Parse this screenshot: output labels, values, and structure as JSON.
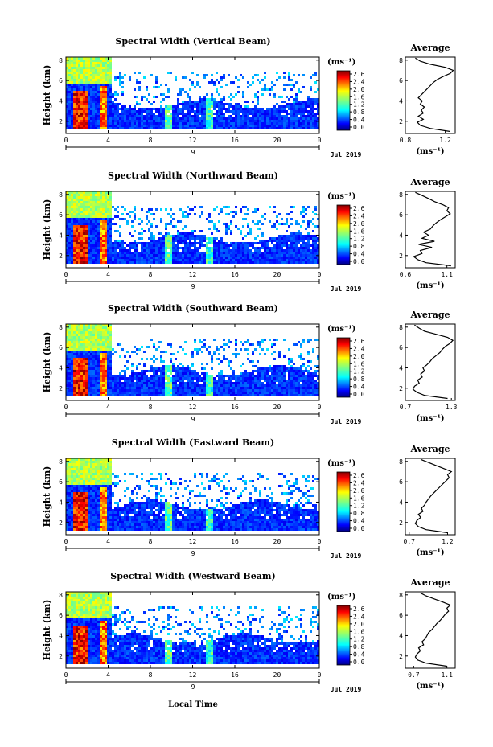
{
  "figure": {
    "xlabel": "Local Time",
    "date_label": "Jul 2019",
    "day_label": "9",
    "colorbar_unit": "(ms⁻¹)"
  },
  "chart_data": [
    {
      "type": "heatmap",
      "title": "Spectral Width (Vertical Beam)",
      "ylabel": "Height (km)",
      "xlabel": "Local Time",
      "x_ticks": [
        "0",
        "4",
        "8",
        "12",
        "16",
        "20",
        "0"
      ],
      "xlim": [
        0,
        24
      ],
      "y_ticks": [
        "2",
        "4",
        "6",
        "8"
      ],
      "ylim": [
        0.8,
        8.3
      ],
      "colorbar_ticks": [
        "2.6",
        "2.4",
        "2.0",
        "1.6",
        "1.2",
        "0.8",
        "0.4",
        "0.0"
      ],
      "clim": [
        0.0,
        2.8
      ],
      "average_profile": {
        "title": "Average",
        "xlabel": "(ms⁻¹)",
        "x_ticks": [
          "0.8",
          "1.2"
        ],
        "xlim": [
          0.8,
          1.3
        ],
        "y_ticks": [
          "2",
          "4",
          "6",
          "8"
        ],
        "ylim": [
          0.8,
          8.3
        ],
        "height": [
          1.0,
          1.3,
          1.6,
          1.9,
          2.2,
          2.5,
          2.8,
          3.1,
          3.4,
          3.7,
          4.0,
          4.3,
          4.6,
          4.9,
          5.2,
          5.5,
          5.8,
          6.1,
          6.4,
          6.7,
          7.0,
          7.3,
          7.6,
          7.9,
          8.2
        ],
        "width": [
          1.25,
          1.05,
          0.95,
          0.92,
          0.98,
          0.93,
          0.98,
          0.96,
          0.99,
          0.95,
          0.97,
          0.93,
          0.96,
          0.99,
          1.02,
          1.05,
          1.08,
          1.12,
          1.18,
          1.25,
          1.28,
          1.2,
          1.05,
          0.95,
          0.9
        ]
      }
    },
    {
      "type": "heatmap",
      "title": "Spectral Width (Northward Beam)",
      "ylabel": "Height (km)",
      "xlabel": "Local Time",
      "x_ticks": [
        "0",
        "4",
        "8",
        "12",
        "16",
        "20",
        "0"
      ],
      "xlim": [
        0,
        24
      ],
      "y_ticks": [
        "2",
        "4",
        "6",
        "8"
      ],
      "ylim": [
        0.8,
        8.3
      ],
      "colorbar_ticks": [
        "2.6",
        "2.4",
        "2.0",
        "1.6",
        "1.2",
        "0.8",
        "0.4",
        "0.0"
      ],
      "clim": [
        0.0,
        2.8
      ],
      "average_profile": {
        "title": "Average",
        "xlabel": "(ms⁻¹)",
        "x_ticks": [
          "0.6",
          "1.1"
        ],
        "xlim": [
          0.6,
          1.2
        ],
        "y_ticks": [
          "2",
          "4",
          "6",
          "8"
        ],
        "ylim": [
          0.8,
          8.3
        ],
        "height": [
          1.0,
          1.3,
          1.6,
          1.9,
          2.2,
          2.5,
          2.8,
          3.1,
          3.4,
          3.7,
          4.0,
          4.3,
          4.6,
          4.9,
          5.2,
          5.5,
          5.8,
          6.1,
          6.4,
          6.7,
          7.0,
          7.3,
          7.6,
          7.9,
          8.2
        ],
        "width": [
          1.15,
          0.85,
          0.75,
          0.7,
          0.8,
          0.78,
          0.92,
          0.76,
          0.95,
          0.8,
          0.88,
          0.82,
          0.9,
          0.93,
          0.97,
          1.02,
          1.08,
          1.14,
          1.1,
          1.12,
          1.05,
          0.95,
          0.88,
          0.8,
          0.72
        ]
      }
    },
    {
      "type": "heatmap",
      "title": "Spectral Width (Southward Beam)",
      "ylabel": "Height (km)",
      "xlabel": "Local Time",
      "x_ticks": [
        "0",
        "4",
        "8",
        "12",
        "16",
        "20",
        "0"
      ],
      "xlim": [
        0,
        24
      ],
      "y_ticks": [
        "2",
        "4",
        "6",
        "8"
      ],
      "ylim": [
        0.8,
        8.3
      ],
      "colorbar_ticks": [
        "2.6",
        "2.4",
        "2.0",
        "1.6",
        "1.2",
        "0.8",
        "0.4",
        "0.0"
      ],
      "clim": [
        0.0,
        2.8
      ],
      "average_profile": {
        "title": "Average",
        "xlabel": "(ms⁻¹)",
        "x_ticks": [
          "0.7",
          "1.3"
        ],
        "xlim": [
          0.7,
          1.35
        ],
        "y_ticks": [
          "2",
          "4",
          "6",
          "8"
        ],
        "ylim": [
          0.8,
          8.3
        ],
        "height": [
          1.0,
          1.3,
          1.6,
          1.9,
          2.2,
          2.5,
          2.8,
          3.1,
          3.4,
          3.7,
          4.0,
          4.3,
          4.6,
          4.9,
          5.2,
          5.5,
          5.8,
          6.1,
          6.4,
          6.7,
          7.0,
          7.3,
          7.6,
          7.9,
          8.2
        ],
        "width": [
          1.25,
          0.95,
          0.85,
          0.8,
          0.82,
          0.88,
          0.86,
          0.92,
          0.9,
          0.95,
          0.93,
          0.98,
          1.02,
          1.05,
          1.1,
          1.15,
          1.18,
          1.22,
          1.28,
          1.32,
          1.25,
          1.1,
          0.95,
          0.88,
          0.82
        ]
      }
    },
    {
      "type": "heatmap",
      "title": "Spectral Width (Eastward Beam)",
      "ylabel": "Height (km)",
      "xlabel": "Local Time",
      "x_ticks": [
        "0",
        "4",
        "8",
        "12",
        "16",
        "20",
        "0"
      ],
      "xlim": [
        0,
        24
      ],
      "y_ticks": [
        "2",
        "4",
        "6",
        "8"
      ],
      "ylim": [
        0.8,
        8.3
      ],
      "colorbar_ticks": [
        "2.6",
        "2.4",
        "2.0",
        "1.6",
        "1.2",
        "0.8",
        "0.4",
        "0.0"
      ],
      "clim": [
        0.0,
        2.8
      ],
      "average_profile": {
        "title": "Average",
        "xlabel": "(ms⁻¹)",
        "x_ticks": [
          "0.7",
          "1.2"
        ],
        "xlim": [
          0.65,
          1.3
        ],
        "y_ticks": [
          "2",
          "4",
          "6",
          "8"
        ],
        "ylim": [
          0.8,
          8.3
        ],
        "height": [
          1.0,
          1.3,
          1.6,
          1.9,
          2.2,
          2.5,
          2.8,
          3.1,
          3.4,
          3.7,
          4.0,
          4.3,
          4.6,
          4.9,
          5.2,
          5.5,
          5.8,
          6.1,
          6.4,
          6.7,
          7.0,
          7.3,
          7.6,
          7.9,
          8.2
        ],
        "width": [
          1.2,
          0.92,
          0.82,
          0.78,
          0.8,
          0.85,
          0.82,
          0.88,
          0.86,
          0.9,
          0.92,
          0.95,
          0.98,
          1.02,
          1.06,
          1.1,
          1.14,
          1.18,
          1.22,
          1.2,
          1.25,
          1.15,
          1.05,
          0.95,
          0.85
        ]
      }
    },
    {
      "type": "heatmap",
      "title": "Spectral Width (Westward Beam)",
      "ylabel": "Height (km)",
      "xlabel": "Local Time",
      "x_ticks": [
        "0",
        "4",
        "8",
        "12",
        "16",
        "20",
        "0"
      ],
      "xlim": [
        0,
        24
      ],
      "y_ticks": [
        "2",
        "4",
        "6",
        "8"
      ],
      "ylim": [
        0.8,
        8.3
      ],
      "colorbar_ticks": [
        "2.6",
        "2.4",
        "2.0",
        "1.6",
        "1.2",
        "0.8",
        "0.4",
        "0.0"
      ],
      "clim": [
        0.0,
        2.8
      ],
      "average_profile": {
        "title": "Average",
        "xlabel": "(ms⁻¹)",
        "x_ticks": [
          "0.7",
          "1.1"
        ],
        "xlim": [
          0.6,
          1.2
        ],
        "y_ticks": [
          "2",
          "4",
          "6",
          "8"
        ],
        "ylim": [
          0.8,
          8.3
        ],
        "height": [
          1.0,
          1.3,
          1.6,
          1.9,
          2.2,
          2.5,
          2.8,
          3.1,
          3.4,
          3.7,
          4.0,
          4.3,
          4.6,
          4.9,
          5.2,
          5.5,
          5.8,
          6.1,
          6.4,
          6.7,
          7.0,
          7.3,
          7.6,
          7.9,
          8.2
        ],
        "width": [
          1.1,
          0.85,
          0.75,
          0.72,
          0.74,
          0.78,
          0.76,
          0.82,
          0.8,
          0.84,
          0.86,
          0.88,
          0.92,
          0.95,
          0.98,
          1.02,
          1.05,
          1.08,
          1.12,
          1.1,
          1.14,
          1.05,
          0.95,
          0.85,
          0.78
        ]
      }
    }
  ]
}
